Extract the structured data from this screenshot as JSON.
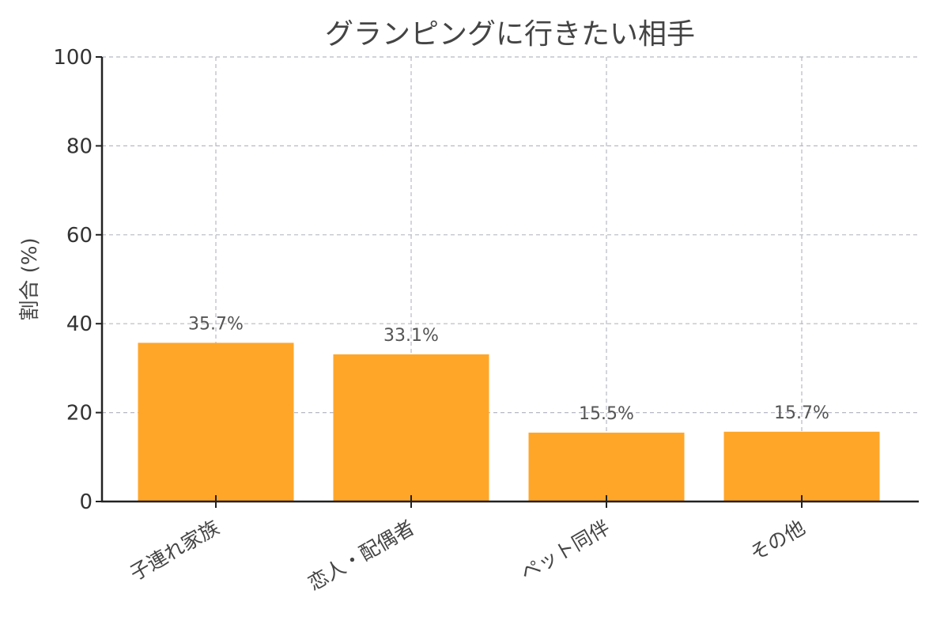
{
  "colors": {
    "bar": "#FFA629",
    "grid": "#b8b8c4",
    "axis": "#222222"
  },
  "chart_data": {
    "type": "bar",
    "title": "グランピングに行きたい相手",
    "xlabel": "",
    "ylabel": "割合 (%)",
    "ylim": [
      0,
      100
    ],
    "yticks": [
      "0",
      "20",
      "40",
      "60",
      "80",
      "100"
    ],
    "grid": true,
    "grid_style": "dashed",
    "categories": [
      "子連れ家族",
      "恋人・配偶者",
      "ペット同伴",
      "その他"
    ],
    "values": [
      35.7,
      33.1,
      15.5,
      15.7
    ],
    "data_labels": [
      "35.7%",
      "33.1%",
      "15.5%",
      "15.7%"
    ]
  }
}
